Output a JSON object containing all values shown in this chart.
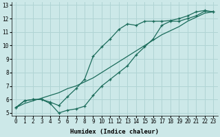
{
  "xlabel": "Humidex (Indice chaleur)",
  "bg_color": "#cce8e8",
  "grid_color": "#b0d4d4",
  "line_color": "#1a6b5a",
  "xlim": [
    -0.5,
    23.5
  ],
  "ylim": [
    4.8,
    13.2
  ],
  "xticks": [
    0,
    1,
    2,
    3,
    4,
    5,
    6,
    7,
    8,
    9,
    10,
    11,
    12,
    13,
    14,
    15,
    16,
    17,
    18,
    19,
    20,
    21,
    22,
    23
  ],
  "yticks": [
    5,
    6,
    7,
    8,
    9,
    10,
    11,
    12,
    13
  ],
  "line1_x": [
    0,
    1,
    2,
    3,
    4,
    5,
    6,
    7,
    8,
    9,
    10,
    11,
    12,
    13,
    14,
    15,
    16,
    17,
    18,
    19,
    20,
    21,
    22,
    23
  ],
  "line1_y": [
    5.4,
    5.9,
    6.0,
    6.0,
    5.7,
    5.0,
    5.2,
    5.3,
    5.5,
    6.3,
    7.0,
    7.5,
    8.0,
    8.5,
    9.3,
    9.9,
    10.5,
    11.5,
    11.8,
    11.8,
    12.0,
    12.2,
    12.55,
    12.5
  ],
  "line2_x": [
    0,
    1,
    2,
    3,
    4,
    5,
    6,
    7,
    8,
    9,
    10,
    11,
    12,
    13,
    14,
    15,
    16,
    17,
    18,
    19,
    20,
    21,
    22,
    23
  ],
  "line2_y": [
    5.4,
    5.9,
    6.0,
    6.0,
    5.8,
    5.55,
    6.2,
    6.8,
    7.5,
    9.2,
    9.9,
    10.5,
    11.2,
    11.6,
    11.5,
    11.8,
    11.8,
    11.8,
    11.85,
    12.0,
    12.2,
    12.5,
    12.6,
    12.5
  ],
  "line3_x": [
    0,
    1,
    2,
    3,
    4,
    5,
    6,
    7,
    8,
    9,
    10,
    11,
    12,
    13,
    14,
    15,
    16,
    17,
    18,
    19,
    20,
    21,
    22,
    23
  ],
  "line3_y": [
    5.4,
    5.7,
    5.9,
    6.1,
    6.3,
    6.5,
    6.8,
    7.0,
    7.3,
    7.6,
    8.0,
    8.4,
    8.8,
    9.2,
    9.6,
    10.0,
    10.4,
    10.8,
    11.1,
    11.4,
    11.8,
    12.1,
    12.4,
    12.5
  ]
}
